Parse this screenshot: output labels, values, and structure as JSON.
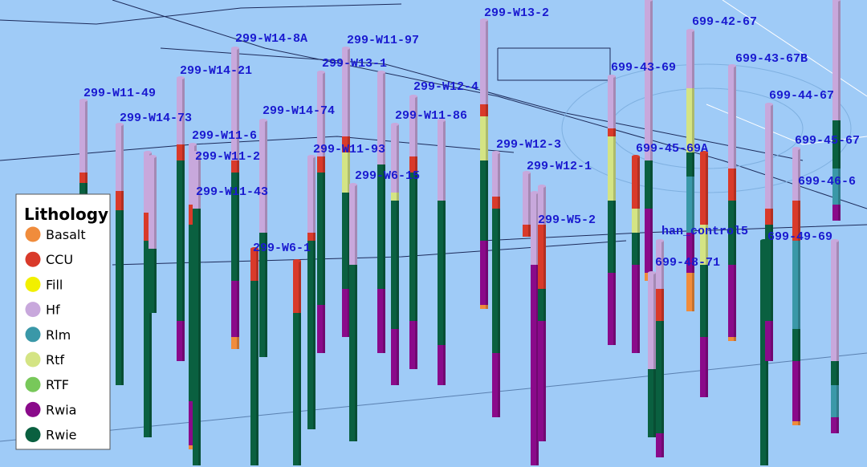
{
  "legend": {
    "title": "Lithology",
    "items": [
      {
        "name": "Basalt",
        "color": "#f08c3c"
      },
      {
        "name": "CCU",
        "color": "#d93a2a"
      },
      {
        "name": "Fill",
        "color": "#f2f000"
      },
      {
        "name": "Hf",
        "color": "#c8a8dc"
      },
      {
        "name": "Rlm",
        "color": "#3a98a8"
      },
      {
        "name": "Rtf",
        "color": "#d4e484"
      },
      {
        "name": "RTF",
        "color": "#78c85a"
      },
      {
        "name": "Rwia",
        "color": "#8a0a8a"
      },
      {
        "name": "Rwie",
        "color": "#0a6040"
      }
    ]
  },
  "wells": [
    "299-W13-2",
    "299-W14-8A",
    "299-W11-97",
    "699-42-67",
    "299-W13-1",
    "699-43-67B",
    "699-43-69",
    "299-W14-21",
    "299-W12-4",
    "299-W11-49",
    "699-44-67",
    "299-W14-74",
    "299-W11-86",
    "299-W14-73",
    "299-W11-6",
    "699-45-67",
    "299-W12-3",
    "699-45-69A",
    "299-W11-93",
    "299-W11-2",
    "299-W12-1",
    "299-W6-15",
    "699-46-6",
    "299-W11-43",
    "299-W5-2",
    "han_control5",
    "699-49-69",
    "299-W6-1",
    "699-48-71"
  ]
}
